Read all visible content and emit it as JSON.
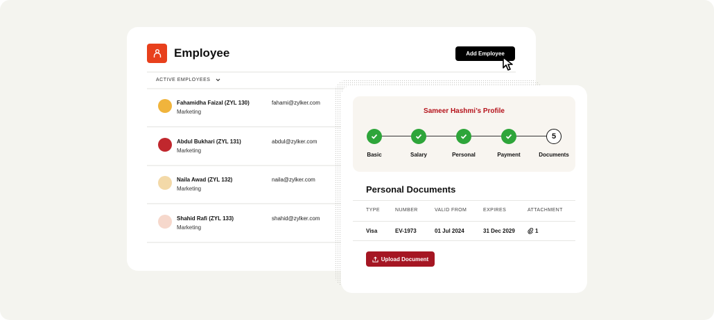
{
  "colors": {
    "background": "#f4f4ef",
    "brand": "#e8401c",
    "accent_red": "#b5121b",
    "success": "#2ea53a",
    "upload": "#a51623"
  },
  "employee": {
    "title": "Employee",
    "icon": "person-icon",
    "add_button": "Add Employee",
    "filter": "ACTIVE EMPLOYEES",
    "rows": [
      {
        "name": "Fahamidha Faizal (ZYL 130)",
        "dept": "Marketing",
        "email": "fahami@zylker.com",
        "avatar_color": "#f0b43c"
      },
      {
        "name": "Abdul Bukhari (ZYL 131)",
        "dept": "Marketing",
        "email": "abdul@zylker.com",
        "avatar_color": "#c0272d"
      },
      {
        "name": "Naila Awad (ZYL 132)",
        "dept": "Marketing",
        "email": "naila@zylker.com",
        "avatar_color": "#f3d9a8"
      },
      {
        "name": "Shahid Rafi (ZYL 133)",
        "dept": "Marketing",
        "email": "shahid@zylker.com",
        "avatar_color": "#f6d8cc"
      }
    ]
  },
  "profile": {
    "title": "Sameer Hashmi’s Profile",
    "steps": [
      {
        "label": "Basic",
        "done": true
      },
      {
        "label": "Salary",
        "done": true
      },
      {
        "label": "Personal",
        "done": true
      },
      {
        "label": "Payment",
        "done": true
      },
      {
        "label": "Documents",
        "done": false,
        "number": "5"
      }
    ],
    "documents_title": "Personal Documents",
    "headers": [
      "TYPE",
      "NUMBER",
      "VALID FROM",
      "EXPIRES",
      "ATTACHMENT"
    ],
    "row": {
      "type": "Visa",
      "number": "EV-1973",
      "valid_from": "01 Jul 2024",
      "expires": "31 Dec 2029",
      "attachments": "1"
    },
    "upload_button": "Upload Document"
  }
}
